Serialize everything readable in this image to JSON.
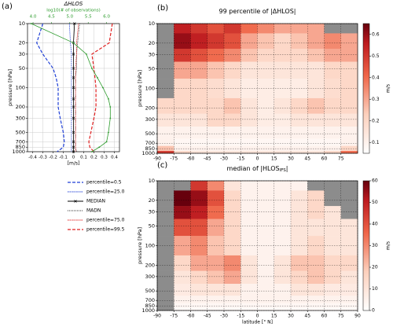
{
  "chart_data": [
    {
      "type": "line",
      "panel_label": "(a)",
      "title": "ΔHLOS",
      "x2label": "log10(# of observations)",
      "xlabel": "[m/s]",
      "ylabel": "pressure [hPa]",
      "y": [
        10,
        20,
        30,
        50,
        70,
        100,
        150,
        200,
        300,
        500,
        700,
        850,
        1000
      ],
      "ylog": true,
      "ylim": [
        1000,
        10
      ],
      "yticks": [
        10,
        20,
        30,
        50,
        100,
        200,
        300,
        500,
        700,
        850,
        1000
      ],
      "xlim": [
        -0.45,
        0.45
      ],
      "xticks": [
        -0.4,
        -0.3,
        -0.2,
        -0.1,
        0.0,
        0.1,
        0.2,
        0.3,
        0.4
      ],
      "x2lim": [
        3.85,
        6.35
      ],
      "x2ticks": [
        {
          "value": 4,
          "label": "4.0"
        },
        {
          "value": 4.5,
          "label": "4.5"
        },
        {
          "value": 5,
          "label": "5.0"
        },
        {
          "value": 5.5,
          "label": "5.5"
        },
        {
          "value": 6,
          "label": "6.0"
        }
      ],
      "grid": true,
      "series": [
        {
          "name": "percentile=0.5",
          "color": "#1f3fd6",
          "linestyle": "dashed",
          "values": [
            -0.3,
            -0.36,
            -0.3,
            -0.2,
            -0.17,
            -0.15,
            -0.15,
            -0.15,
            -0.13,
            -0.1,
            -0.09,
            -0.1,
            -0.16
          ]
        },
        {
          "name": "percentile=25.0",
          "color": "#1f3fd6",
          "linestyle": "finedash",
          "values": [
            -0.04,
            -0.03,
            -0.02,
            -0.02,
            -0.02,
            -0.02,
            -0.02,
            -0.02,
            -0.02,
            -0.02,
            -0.02,
            -0.02,
            -0.02
          ]
        },
        {
          "name": "MEDIAN",
          "color": "#000000",
          "linestyle": "marker",
          "values": [
            0.01,
            0.0,
            0.0,
            0.0,
            0.0,
            0.0,
            0.0,
            0.0,
            0.0,
            0.0,
            0.0,
            0.0,
            0.0
          ]
        },
        {
          "name": "MADN",
          "color": "#000000",
          "linestyle": "dotted",
          "values": [
            0.06,
            0.04,
            0.03,
            0.03,
            0.02,
            0.02,
            0.02,
            0.02,
            0.02,
            0.02,
            0.02,
            0.02,
            0.03
          ]
        },
        {
          "name": "percentile=75.0",
          "color": "#e02020",
          "linestyle": "finedash",
          "values": [
            0.05,
            0.03,
            0.03,
            0.02,
            0.02,
            0.02,
            0.02,
            0.02,
            0.02,
            0.02,
            0.02,
            0.02,
            0.02
          ]
        },
        {
          "name": "percentile=99.5",
          "color": "#e02020",
          "linestyle": "dashed",
          "values": [
            0.38,
            0.35,
            0.18,
            0.2,
            0.21,
            0.22,
            0.22,
            0.22,
            0.2,
            0.17,
            0.15,
            0.16,
            0.2
          ]
        },
        {
          "axis": "x2",
          "color": "#2a9a2a",
          "linestyle": "solid",
          "values": [
            3.95,
            5.1,
            5.45,
            5.6,
            5.75,
            5.9,
            6.05,
            6.1,
            6.1,
            6.05,
            6.0,
            5.8,
            5.6
          ]
        }
      ]
    },
    {
      "type": "heatmap",
      "panel_label": "(b)",
      "title": "99 percentile of |ΔHLOS|",
      "ylabel": "pressure [hPa]",
      "x": [
        -82.5,
        -67.5,
        -52.5,
        -37.5,
        -22.5,
        -7.5,
        7.5,
        22.5,
        37.5,
        52.5,
        67.5,
        82.5
      ],
      "y": [
        10,
        20,
        30,
        50,
        100,
        200,
        300,
        500,
        700,
        850,
        1000
      ],
      "xlim": [
        -90,
        90
      ],
      "xticks": [
        -90,
        -75,
        -60,
        -45,
        -30,
        -15,
        0,
        15,
        30,
        45,
        60,
        75
      ],
      "ylog": true,
      "ylim": [
        1000,
        10
      ],
      "yticks": [
        10,
        20,
        30,
        50,
        100,
        200,
        300,
        500,
        700,
        850,
        1000
      ],
      "colorbar": {
        "label": "m/s",
        "lim": [
          0.05,
          0.65
        ],
        "ticks": [
          0.1,
          0.2,
          0.3,
          0.4,
          0.5,
          0.6
        ]
      },
      "values": [
        [
          null,
          0.55,
          0.5,
          0.45,
          0.5,
          0.4,
          0.35,
          0.3,
          0.3,
          0.3,
          null,
          null
        ],
        [
          null,
          0.6,
          0.55,
          0.5,
          0.45,
          0.3,
          0.25,
          0.2,
          0.25,
          0.3,
          0.35,
          0.3
        ],
        [
          null,
          0.5,
          0.45,
          0.4,
          0.35,
          0.25,
          0.2,
          0.2,
          0.2,
          0.25,
          0.3,
          0.3
        ],
        [
          null,
          0.3,
          0.3,
          0.25,
          0.2,
          0.15,
          0.15,
          0.15,
          0.15,
          0.15,
          0.2,
          0.2
        ],
        [
          null,
          0.2,
          0.2,
          0.18,
          0.15,
          0.12,
          0.12,
          0.12,
          0.12,
          0.15,
          0.18,
          0.2
        ],
        [
          0.2,
          0.2,
          0.2,
          0.2,
          0.25,
          0.15,
          0.12,
          0.15,
          0.2,
          0.25,
          0.2,
          0.2
        ],
        [
          0.15,
          0.15,
          0.15,
          0.2,
          0.2,
          0.15,
          0.12,
          0.12,
          0.15,
          0.15,
          0.15,
          0.15
        ],
        [
          0.1,
          0.1,
          0.1,
          0.1,
          0.1,
          0.1,
          0.1,
          0.1,
          0.1,
          0.1,
          0.1,
          0.1
        ],
        [
          0.1,
          0.08,
          0.08,
          0.08,
          0.08,
          0.08,
          0.08,
          0.08,
          0.08,
          0.08,
          0.08,
          0.1
        ],
        [
          0.25,
          0.1,
          0.1,
          0.1,
          0.1,
          0.1,
          0.1,
          0.1,
          0.1,
          0.1,
          0.1,
          0.2
        ],
        [
          0.5,
          0.2,
          0.15,
          0.15,
          0.15,
          0.15,
          0.15,
          0.15,
          0.15,
          0.15,
          0.2,
          0.4
        ]
      ]
    },
    {
      "type": "heatmap",
      "panel_label": "(c)",
      "title": "median of |HLOS",
      "title_sub": "IFS",
      "title_end": "|",
      "ylabel": "pressure [hPa]",
      "xlabel": "latitude [° N]",
      "x": [
        -82.5,
        -67.5,
        -52.5,
        -37.5,
        -22.5,
        -7.5,
        7.5,
        22.5,
        37.5,
        52.5,
        67.5,
        82.5
      ],
      "y": [
        10,
        20,
        30,
        50,
        100,
        200,
        300,
        500,
        700,
        850,
        1000
      ],
      "xlim": [
        -90,
        90
      ],
      "xticks": [
        -90,
        -75,
        -60,
        -45,
        -30,
        -15,
        0,
        15,
        30,
        45,
        60,
        75,
        90
      ],
      "ylog": true,
      "ylim": [
        1000,
        10
      ],
      "yticks": [
        10,
        20,
        30,
        50,
        100,
        200,
        300,
        500,
        700,
        850,
        1000
      ],
      "colorbar": {
        "label": "m/s",
        "lim": [
          0,
          60
        ],
        "ticks": [
          0,
          10,
          20,
          30,
          40,
          50,
          60
        ]
      },
      "values": [
        [
          null,
          null,
          45,
          30,
          10,
          5,
          5,
          5,
          5,
          null,
          null,
          null
        ],
        [
          null,
          60,
          55,
          40,
          15,
          5,
          5,
          5,
          10,
          15,
          null,
          null
        ],
        [
          null,
          55,
          50,
          35,
          15,
          5,
          5,
          5,
          10,
          15,
          10,
          null
        ],
        [
          null,
          40,
          40,
          25,
          15,
          5,
          5,
          5,
          10,
          10,
          10,
          10
        ],
        [
          null,
          25,
          30,
          20,
          15,
          5,
          5,
          5,
          10,
          15,
          10,
          10
        ],
        [
          null,
          15,
          25,
          25,
          30,
          10,
          5,
          10,
          20,
          20,
          15,
          15
        ],
        [
          null,
          10,
          15,
          20,
          25,
          10,
          5,
          10,
          15,
          20,
          15,
          10
        ],
        [
          null,
          8,
          10,
          10,
          10,
          5,
          5,
          5,
          10,
          10,
          8,
          8
        ],
        [
          null,
          5,
          5,
          5,
          5,
          5,
          5,
          5,
          5,
          5,
          5,
          5
        ],
        [
          null,
          3,
          3,
          3,
          3,
          3,
          3,
          3,
          3,
          3,
          3,
          3
        ],
        [
          null,
          2,
          2,
          2,
          2,
          2,
          2,
          2,
          2,
          2,
          2,
          2
        ]
      ]
    }
  ]
}
